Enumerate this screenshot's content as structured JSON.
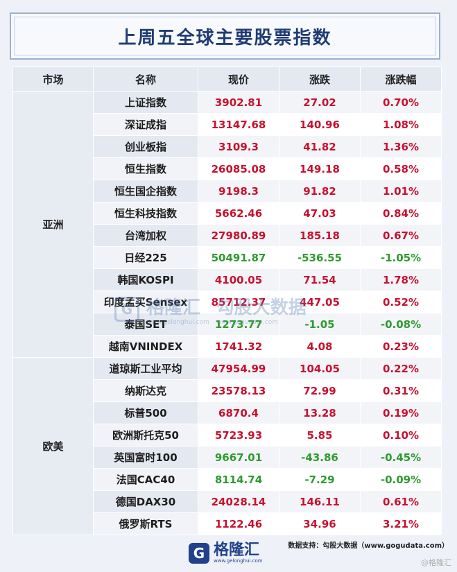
{
  "title": "上周五全球主要股票指数",
  "headers": [
    "市场",
    "名称",
    "现价",
    "涨跌",
    "涨跌幅"
  ],
  "groups": [
    {
      "market": "亚洲",
      "rows": [
        {
          "name": "上证指数",
          "price": "3902.81",
          "change": "27.02",
          "pct": "0.70%",
          "dir": "up"
        },
        {
          "name": "深证成指",
          "price": "13147.68",
          "change": "140.96",
          "pct": "1.08%",
          "dir": "up"
        },
        {
          "name": "创业板指",
          "price": "3109.3",
          "change": "41.82",
          "pct": "1.36%",
          "dir": "up"
        },
        {
          "name": "恒生指数",
          "price": "26085.08",
          "change": "149.18",
          "pct": "0.58%",
          "dir": "up"
        },
        {
          "name": "恒生国企指数",
          "price": "9198.3",
          "change": "91.82",
          "pct": "1.01%",
          "dir": "up"
        },
        {
          "name": "恒生科技指数",
          "price": "5662.46",
          "change": "47.03",
          "pct": "0.84%",
          "dir": "up"
        },
        {
          "name": "台湾加权",
          "price": "27980.89",
          "change": "185.18",
          "pct": "0.67%",
          "dir": "up"
        },
        {
          "name": "日经225",
          "price": "50491.87",
          "change": "-536.55",
          "pct": "-1.05%",
          "dir": "down"
        },
        {
          "name": "韩国KOSPI",
          "price": "4100.05",
          "change": "71.54",
          "pct": "1.78%",
          "dir": "up"
        },
        {
          "name": "印度孟买Sensex",
          "price": "85712.37",
          "change": "447.05",
          "pct": "0.52%",
          "dir": "up"
        },
        {
          "name": "泰国SET",
          "price": "1273.77",
          "change": "-1.05",
          "pct": "-0.08%",
          "dir": "down"
        },
        {
          "name": "越南VNINDEX",
          "price": "1741.32",
          "change": "4.08",
          "pct": "0.23%",
          "dir": "up"
        }
      ]
    },
    {
      "market": "欧美",
      "rows": [
        {
          "name": "道琼斯工业平均",
          "price": "47954.99",
          "change": "104.05",
          "pct": "0.22%",
          "dir": "up"
        },
        {
          "name": "纳斯达克",
          "price": "23578.13",
          "change": "72.99",
          "pct": "0.31%",
          "dir": "up"
        },
        {
          "name": "标普500",
          "price": "6870.4",
          "change": "13.28",
          "pct": "0.19%",
          "dir": "up"
        },
        {
          "name": "欧洲斯托克50",
          "price": "5723.93",
          "change": "5.85",
          "pct": "0.10%",
          "dir": "up"
        },
        {
          "name": "英国富时100",
          "price": "9667.01",
          "change": "-43.86",
          "pct": "-0.45%",
          "dir": "down"
        },
        {
          "name": "法国CAC40",
          "price": "8114.74",
          "change": "-7.29",
          "pct": "-0.09%",
          "dir": "down"
        },
        {
          "name": "德国DAX30",
          "price": "24028.14",
          "change": "146.11",
          "pct": "0.61%",
          "dir": "up"
        },
        {
          "name": "俄罗斯RTS",
          "price": "1122.46",
          "change": "34.96",
          "pct": "3.21%",
          "dir": "up"
        }
      ]
    }
  ],
  "colors": {
    "up": "#c8102e",
    "down": "#2e9b2e",
    "title": "#1f3c73"
  },
  "watermark": {
    "logo_text": "格隆汇",
    "site": "www.gelonghui.com",
    "brand2": "勾股大数据",
    "site2": "www.gogudata.com"
  },
  "footer": {
    "source": "数据支持：勾股大数据（www.gogudata.com）",
    "logo_text": "格隆汇",
    "logo_sub": "www.gelonghui.com",
    "corner": "@格隆汇"
  }
}
